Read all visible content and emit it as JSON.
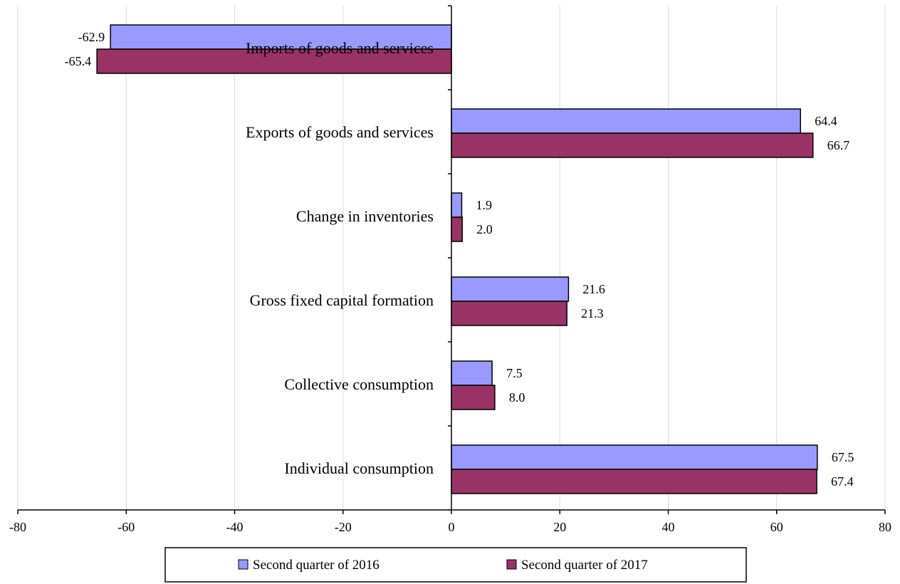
{
  "chart_data": {
    "type": "bar",
    "orientation": "horizontal",
    "categories": [
      "Imports of goods and services",
      "Exports of goods and services",
      "Change in inventories",
      "Gross fixed capital formation",
      "Collective consumption",
      "Individual consumption"
    ],
    "series": [
      {
        "name": "Second quarter of 2016",
        "color": "#9999ff",
        "values": [
          -62.9,
          64.4,
          1.9,
          21.6,
          7.5,
          67.5
        ],
        "labels": [
          "-62.9",
          "64.4",
          "1.9",
          "21.6",
          "7.5",
          "67.5"
        ]
      },
      {
        "name": "Second quarter of 2017",
        "color": "#993366",
        "values": [
          -65.4,
          66.7,
          2.0,
          21.3,
          8.0,
          67.4
        ],
        "labels": [
          "-65.4",
          "66.7",
          "2.0",
          "21.3",
          "8.0",
          "67.4"
        ]
      }
    ],
    "xlim": [
      -80,
      80
    ],
    "x_ticks": [
      -80,
      -60,
      -40,
      -20,
      0,
      20,
      40,
      60,
      80
    ],
    "x_tick_labels": [
      "-80",
      "-60",
      "-40",
      "-20",
      "0",
      "20",
      "40",
      "60",
      "80"
    ],
    "grid": "vertical",
    "legend": "bottom",
    "title": "",
    "xlabel": "",
    "ylabel": ""
  }
}
